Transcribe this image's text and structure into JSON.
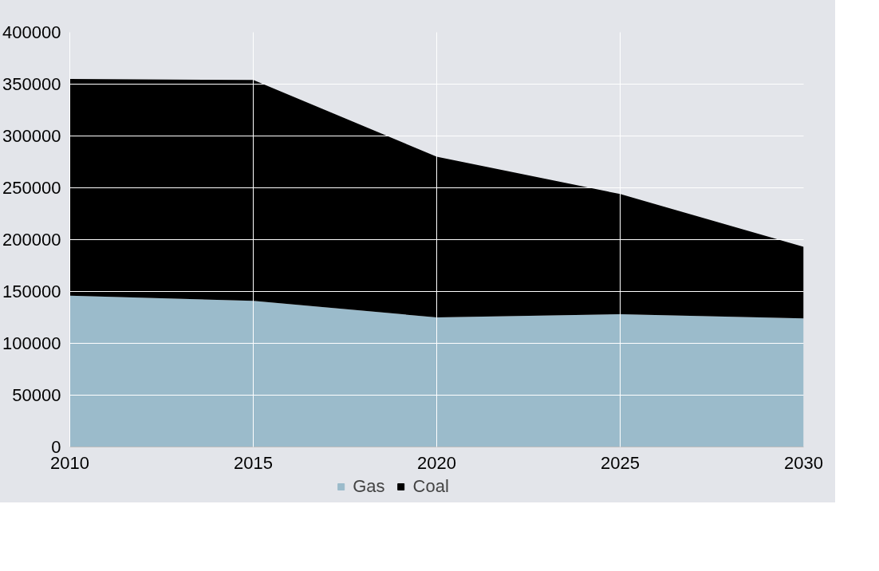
{
  "chart_data": {
    "type": "area",
    "stacked": true,
    "x": [
      2010,
      2015,
      2020,
      2025,
      2030
    ],
    "series": [
      {
        "name": "Gas",
        "color": "#9bbbcb",
        "values": [
          146000,
          141000,
          125000,
          128000,
          124000
        ]
      },
      {
        "name": "Coal",
        "color": "#000000",
        "values": [
          209000,
          213000,
          155000,
          116000,
          69000
        ]
      }
    ],
    "xlim": [
      2010,
      2030
    ],
    "xticks": [
      2010,
      2015,
      2020,
      2025,
      2030
    ],
    "ylim": [
      0,
      400000
    ],
    "yticks": [
      0,
      50000,
      100000,
      150000,
      200000,
      250000,
      300000,
      350000,
      400000
    ],
    "grid": true,
    "legend": "bottom"
  }
}
